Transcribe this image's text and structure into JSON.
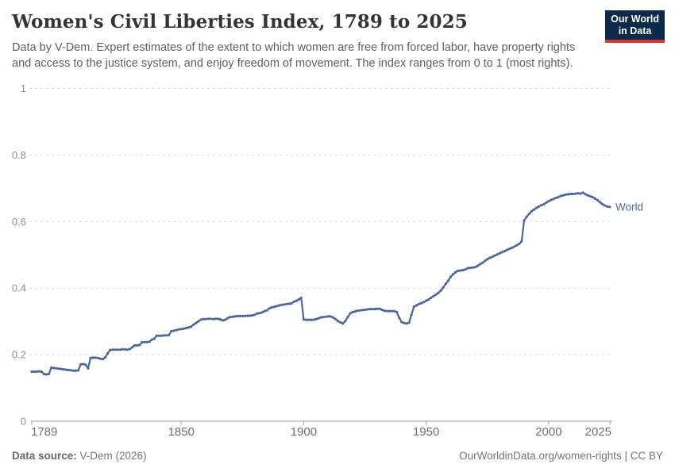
{
  "header": {
    "title": "Women's Civil Liberties Index, 1789 to 2025",
    "subtitle_line1": "Data by V-Dem. Expert estimates of the extent to which women are free from forced labor, have property rights",
    "subtitle_line2": "and access to the justice system, and enjoy freedom of movement. The index ranges from 0 to 1 (most rights).",
    "logo": {
      "line1": "Our World",
      "line2": "in Data",
      "bg_color": "#0b2a4c",
      "accent_color": "#dc352b"
    }
  },
  "footer": {
    "source_label": "Data source:",
    "source_value": " V-Dem (2026)",
    "link_text": "OurWorldinData.org/women-rights | CC BY"
  },
  "chart_data": {
    "type": "line",
    "title": "Women's Civil Liberties Index, 1789 to 2025",
    "xlabel": "",
    "ylabel": "",
    "xlim": [
      1789,
      2025
    ],
    "ylim": [
      0,
      1
    ],
    "grid": "horizontal-dashed",
    "legend_position": "end-of-line-label",
    "x_ticks": [
      1789,
      1850,
      1900,
      1950,
      2000,
      2025
    ],
    "y_ticks": [
      0,
      0.2,
      0.4,
      0.6,
      0.8,
      1
    ],
    "y_tick_labels": [
      "0",
      "0.2",
      "0.4",
      "0.6",
      "0.8",
      "1"
    ],
    "colors": {
      "line": "#4a66a0",
      "series_label": "#4c6a9c",
      "gridline": "#d9d9d9",
      "axis": "#9b9b9b",
      "x_tick_label": "#6e6e6e",
      "y_tick_label": "#8f8f8f"
    },
    "series": [
      {
        "name": "World",
        "start_year": 1789,
        "step": 1,
        "values": [
          0.149,
          0.149,
          0.149,
          0.15,
          0.149,
          0.142,
          0.141,
          0.142,
          0.161,
          0.16,
          0.159,
          0.158,
          0.157,
          0.156,
          0.155,
          0.154,
          0.153,
          0.152,
          0.152,
          0.153,
          0.171,
          0.172,
          0.17,
          0.159,
          0.19,
          0.191,
          0.191,
          0.19,
          0.188,
          0.187,
          0.192,
          0.204,
          0.214,
          0.215,
          0.215,
          0.215,
          0.215,
          0.216,
          0.216,
          0.215,
          0.217,
          0.222,
          0.228,
          0.228,
          0.229,
          0.237,
          0.238,
          0.238,
          0.239,
          0.245,
          0.248,
          0.257,
          0.257,
          0.257,
          0.258,
          0.258,
          0.259,
          0.271,
          0.272,
          0.274,
          0.276,
          0.277,
          0.278,
          0.28,
          0.282,
          0.284,
          0.29,
          0.295,
          0.3,
          0.305,
          0.307,
          0.307,
          0.308,
          0.308,
          0.307,
          0.308,
          0.308,
          0.306,
          0.303,
          0.305,
          0.31,
          0.313,
          0.314,
          0.315,
          0.316,
          0.316,
          0.316,
          0.316,
          0.317,
          0.317,
          0.318,
          0.32,
          0.324,
          0.325,
          0.327,
          0.331,
          0.333,
          0.339,
          0.342,
          0.344,
          0.346,
          0.348,
          0.35,
          0.351,
          0.352,
          0.353,
          0.354,
          0.359,
          0.362,
          0.366,
          0.371,
          0.306,
          0.305,
          0.305,
          0.305,
          0.305,
          0.307,
          0.309,
          0.312,
          0.313,
          0.314,
          0.315,
          0.315,
          0.312,
          0.307,
          0.301,
          0.297,
          0.294,
          0.301,
          0.313,
          0.324,
          0.328,
          0.33,
          0.332,
          0.333,
          0.334,
          0.335,
          0.336,
          0.337,
          0.337,
          0.337,
          0.338,
          0.338,
          0.335,
          0.332,
          0.331,
          0.331,
          0.331,
          0.331,
          0.328,
          0.311,
          0.298,
          0.295,
          0.294,
          0.296,
          0.32,
          0.344,
          0.348,
          0.352,
          0.355,
          0.358,
          0.362,
          0.366,
          0.371,
          0.376,
          0.381,
          0.386,
          0.393,
          0.402,
          0.413,
          0.422,
          0.434,
          0.442,
          0.448,
          0.452,
          0.453,
          0.454,
          0.456,
          0.46,
          0.461,
          0.462,
          0.463,
          0.467,
          0.472,
          0.476,
          0.482,
          0.487,
          0.491,
          0.494,
          0.498,
          0.501,
          0.505,
          0.508,
          0.511,
          0.515,
          0.518,
          0.521,
          0.525,
          0.529,
          0.533,
          0.541,
          0.603,
          0.614,
          0.623,
          0.631,
          0.636,
          0.641,
          0.645,
          0.649,
          0.652,
          0.657,
          0.661,
          0.665,
          0.668,
          0.671,
          0.674,
          0.677,
          0.679,
          0.681,
          0.682,
          0.683,
          0.683,
          0.684,
          0.685,
          0.684,
          0.687,
          0.682,
          0.679,
          0.676,
          0.673,
          0.669,
          0.664,
          0.658,
          0.652,
          0.648,
          0.645,
          0.644
        ]
      }
    ]
  }
}
